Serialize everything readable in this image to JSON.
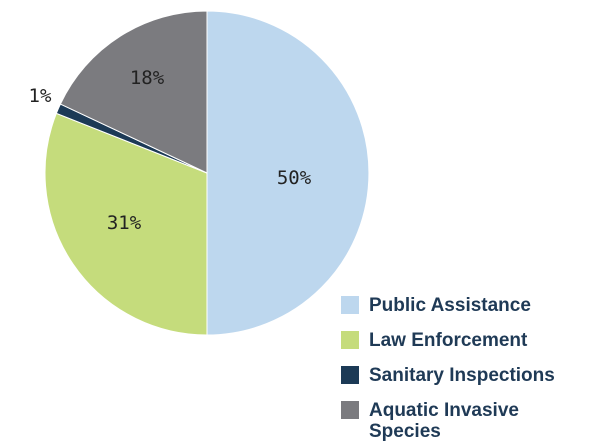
{
  "chart_data": {
    "type": "pie",
    "title": "",
    "slices": [
      {
        "label": "Public Assistance",
        "value": 50,
        "value_label": "50%",
        "color": "#bdd7ee"
      },
      {
        "label": "Law Enforcement",
        "value": 31,
        "value_label": "31%",
        "color": "#c5dc7c"
      },
      {
        "label": "Sanitary Inspections",
        "value": 1,
        "value_label": "1%",
        "color": "#1c3a56"
      },
      {
        "label": "Aquatic Invasive Species",
        "value": 18,
        "value_label": "18%",
        "color": "#7b7b7f"
      }
    ],
    "start": "12 o'clock",
    "direction": "clockwise",
    "legend_position": "bottom-right"
  }
}
